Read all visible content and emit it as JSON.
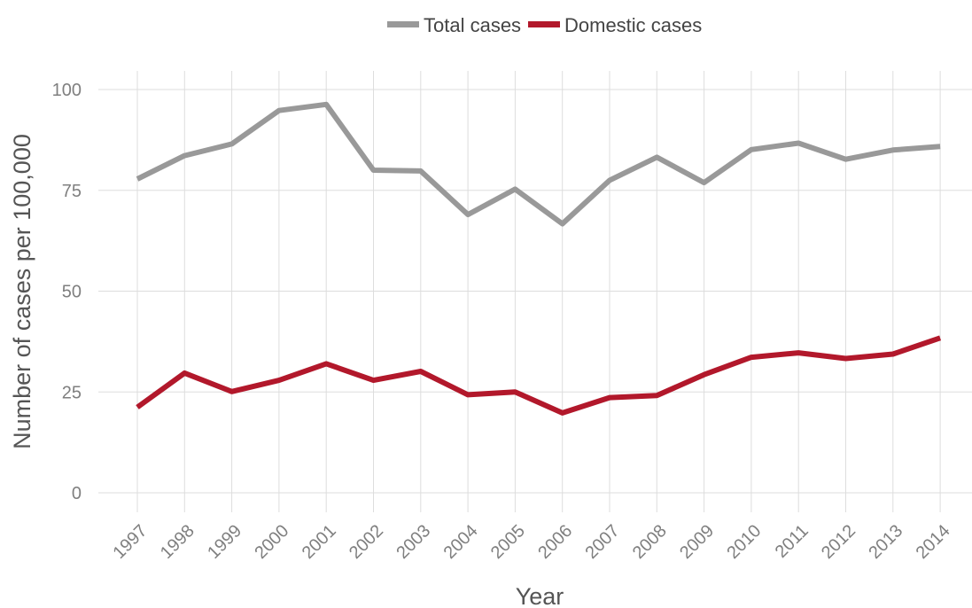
{
  "chart_data": {
    "type": "line",
    "x": [
      "1997",
      "1998",
      "1999",
      "2000",
      "2001",
      "2002",
      "2003",
      "2004",
      "2005",
      "2006",
      "2007",
      "2008",
      "2009",
      "2010",
      "2011",
      "2012",
      "2013",
      "2014"
    ],
    "series": [
      {
        "name": "Total cases",
        "color": "#999999",
        "values": [
          77.8,
          83.6,
          86.5,
          94.8,
          96.3,
          80.0,
          79.8,
          69.0,
          75.3,
          66.7,
          77.5,
          83.2,
          76.9,
          85.1,
          86.7,
          82.7,
          85.0,
          85.9
        ]
      },
      {
        "name": "Domestic cases",
        "color": "#b2182b",
        "values": [
          21.2,
          29.7,
          25.1,
          27.9,
          32.0,
          27.9,
          30.1,
          24.3,
          25.0,
          19.8,
          23.6,
          24.1,
          29.3,
          33.6,
          34.7,
          33.3,
          34.4,
          38.4
        ]
      }
    ],
    "xlabel": "Year",
    "ylabel": "Number of cases per 100,000",
    "ylim": [
      0,
      100
    ],
    "yticks": [
      "0",
      "25",
      "50",
      "75",
      "100"
    ],
    "grid": true,
    "legend_position": "top-center"
  }
}
